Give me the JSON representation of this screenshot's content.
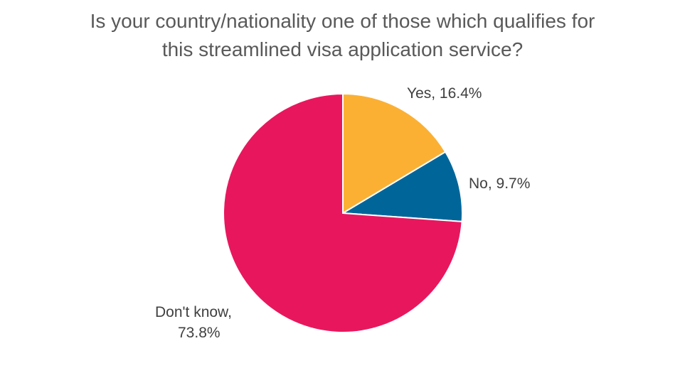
{
  "chart_data": {
    "type": "pie",
    "title_lines": [
      "Is your country/nationality one of those which qualifies for",
      "this streamlined visa application service?"
    ],
    "slices": [
      {
        "label": "Yes",
        "value": 16.4,
        "display": "Yes, 16.4%",
        "color": "#FBB034"
      },
      {
        "label": "No",
        "value": 9.7,
        "display": "No, 9.7%",
        "color": "#00669A"
      },
      {
        "label": "Don't know",
        "value": 73.8,
        "display_lines": [
          "Don't know,",
          "73.8%"
        ],
        "color": "#E8175D"
      }
    ],
    "legend": "none",
    "start_angle": "12 o'clock, clockwise"
  }
}
